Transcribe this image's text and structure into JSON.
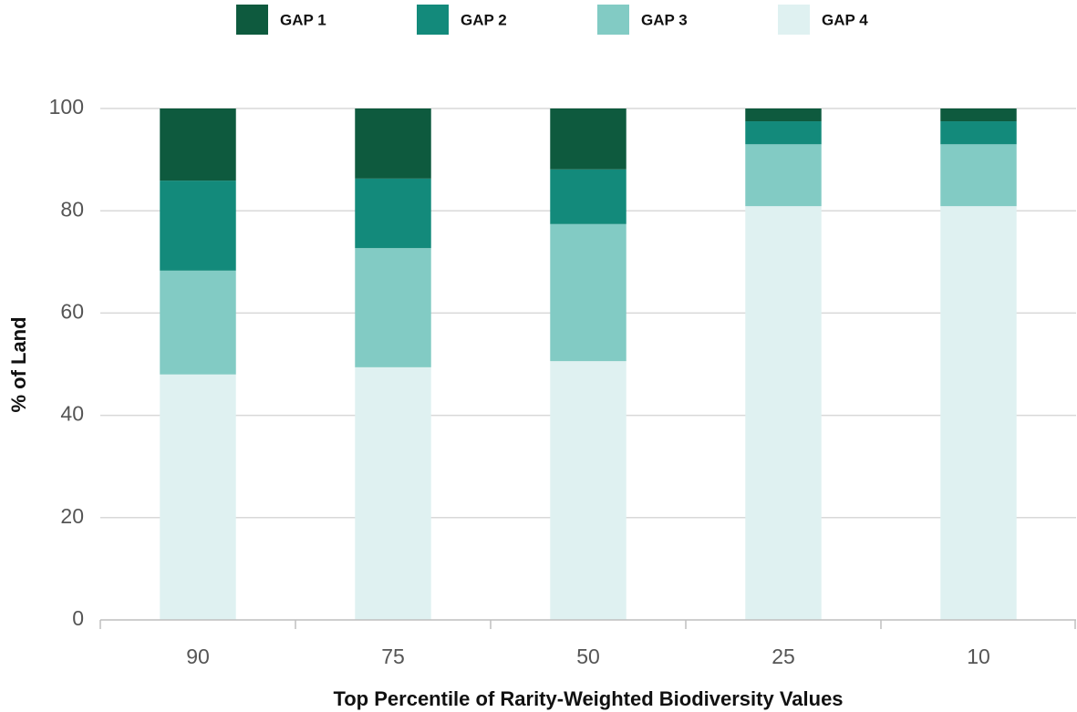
{
  "chart_data": {
    "type": "stacked_bar",
    "xlabel": "Top Percentile of Rarity-Weighted Biodiversity Values",
    "ylabel": "% of Land",
    "categories": [
      "90",
      "75",
      "50",
      "25",
      "10"
    ],
    "series": [
      {
        "name": "GAP 1",
        "color": "#0e5a3e",
        "values": [
          14.1,
          13.7,
          11.9,
          2.5,
          2.5
        ]
      },
      {
        "name": "GAP 2",
        "color": "#138a7b",
        "values": [
          17.6,
          13.6,
          10.7,
          4.5,
          4.5
        ]
      },
      {
        "name": "GAP 3",
        "color": "#82cbc4",
        "values": [
          20.3,
          23.3,
          26.8,
          12.1,
          12.1
        ]
      },
      {
        "name": "GAP 4",
        "color": "#dff1f1",
        "values": [
          48.0,
          49.4,
          50.6,
          80.9,
          80.9
        ]
      }
    ],
    "ylim": [
      0,
      100
    ],
    "yticks": [
      0,
      20,
      40,
      60,
      80,
      100
    ],
    "grid": true,
    "legend": "top"
  }
}
